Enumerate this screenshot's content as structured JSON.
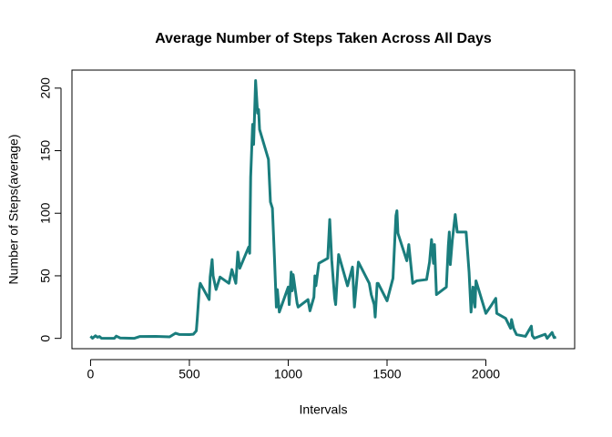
{
  "chart_data": {
    "type": "line",
    "title": "Average Number of Steps Taken Across All Days",
    "x_label": "Intervals",
    "y_label": "Number of Steps(average)",
    "xlim": [
      -94.2,
      2449.2
    ],
    "ylim": [
      -8.25,
      214.4
    ],
    "xticks": [
      0,
      500,
      1000,
      1500,
      2000
    ],
    "yticks": [
      0,
      50,
      100,
      150,
      200
    ],
    "series": [
      {
        "color": "#1a7d7d",
        "x": [
          0,
          10,
          25,
          35,
          45,
          55,
          120,
          130,
          150,
          220,
          250,
          330,
          400,
          430,
          450,
          500,
          520,
          535,
          540,
          550,
          555,
          600,
          605,
          615,
          620,
          635,
          655,
          700,
          715,
          735,
          745,
          755,
          800,
          805,
          810,
          820,
          825,
          835,
          845,
          850,
          855,
          900,
          910,
          920,
          930,
          940,
          945,
          955,
          1000,
          1005,
          1015,
          1020,
          1025,
          1045,
          1050,
          1100,
          1110,
          1130,
          1135,
          1140,
          1155,
          1200,
          1210,
          1220,
          1235,
          1240,
          1255,
          1300,
          1325,
          1335,
          1355,
          1410,
          1420,
          1435,
          1440,
          1450,
          1455,
          1500,
          1530,
          1545,
          1550,
          1555,
          1600,
          1610,
          1630,
          1650,
          1700,
          1715,
          1725,
          1735,
          1740,
          1750,
          1800,
          1810,
          1815,
          1820,
          1830,
          1845,
          1855,
          1900,
          1915,
          1925,
          1935,
          1945,
          1950,
          2000,
          2030,
          2050,
          2055,
          2100,
          2125,
          2130,
          2140,
          2155,
          2200,
          2230,
          2235,
          2245,
          2300,
          2310,
          2335,
          2345,
          2355
        ],
        "values": [
          1.7,
          0.1,
          2.1,
          0.9,
          1.5,
          0.1,
          0,
          1.8,
          0.3,
          0,
          1.5,
          1.6,
          1.2,
          4.1,
          3.1,
          3,
          3.3,
          6,
          16,
          39,
          44,
          31,
          49,
          63,
          50,
          39,
          49,
          44,
          55,
          44,
          69,
          56,
          73,
          68,
          129,
          171,
          155,
          206,
          180,
          183,
          167,
          143,
          109,
          104,
          66,
          25,
          39,
          21,
          41,
          27,
          53,
          38,
          51,
          28,
          25,
          31,
          22,
          33,
          50,
          42,
          60,
          64,
          95,
          63,
          32,
          27,
          67,
          42,
          57,
          25,
          61,
          44,
          35,
          27,
          17,
          44,
          44,
          30,
          48,
          98,
          102,
          84,
          62,
          75,
          44,
          46,
          47,
          61,
          79,
          60,
          75,
          35,
          41,
          74,
          85,
          59,
          78,
          99,
          85,
          85,
          53,
          21,
          41,
          25,
          46,
          20,
          27,
          32,
          20,
          16,
          8,
          15,
          8,
          3,
          1.6,
          9.8,
          2.2,
          0.1,
          3.3,
          0,
          4.7,
          0.6,
          1.1
        ]
      }
    ]
  }
}
